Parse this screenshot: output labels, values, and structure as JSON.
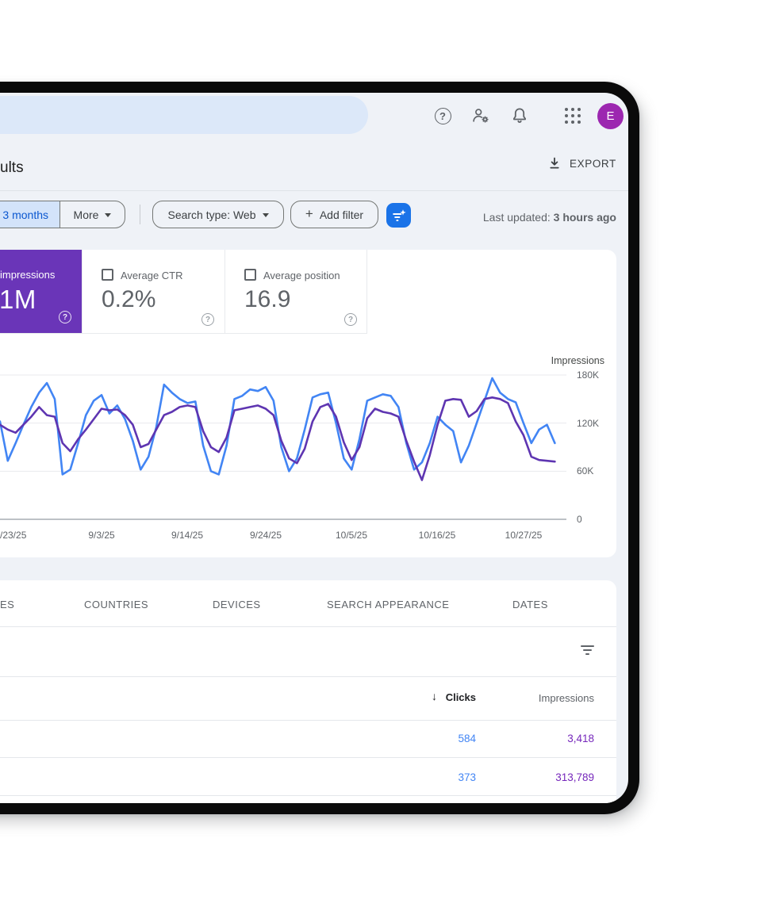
{
  "topbar": {
    "avatar_letter": "E"
  },
  "header": {
    "title": "ults",
    "export_label": "EXPORT"
  },
  "filters": {
    "date_chip": "3 months",
    "more_chip": "More",
    "search_type_chip": "Search type: Web",
    "add_filter_plus": "+",
    "add_filter_chip": "Add filter",
    "last_updated_label": "Last updated:",
    "last_updated_value": "3 hours ago"
  },
  "cards": {
    "impressions": {
      "label": "impressions",
      "value": "1M",
      "bg": "#6a35b8"
    },
    "ctr": {
      "label": "Average CTR",
      "value": "0.2%"
    },
    "position": {
      "label": "Average position",
      "value": "16.9"
    }
  },
  "chart_data": {
    "type": "line",
    "unit": "thousands",
    "axis_label": "Impressions",
    "ylim": [
      0,
      190
    ],
    "grid": true,
    "legend_position": "none",
    "y_ticks": [
      "180K",
      "120K",
      "60K",
      "0"
    ],
    "y_tick_values": [
      180,
      120,
      60,
      0
    ],
    "x_ticks": [
      "/23/25",
      "9/3/25",
      "9/14/25",
      "9/24/25",
      "10/5/25",
      "10/16/25",
      "10/27/25"
    ],
    "x_tick_positions": [
      0,
      128,
      236,
      335,
      443,
      551,
      660
    ],
    "series": [
      {
        "name": "Clicks",
        "color": "#4285f4",
        "values": [
          122,
          73,
          95,
          118,
          140,
          158,
          170,
          150,
          56,
          62,
          95,
          130,
          148,
          155,
          132,
          142,
          125,
          98,
          62,
          78,
          115,
          168,
          158,
          150,
          145,
          147,
          92,
          60,
          56,
          92,
          150,
          154,
          162,
          160,
          165,
          148,
          90,
          60,
          76,
          112,
          152,
          156,
          158,
          120,
          76,
          62,
          100,
          148,
          152,
          156,
          154,
          140,
          95,
          62,
          71,
          95,
          128,
          118,
          110,
          71,
          92,
          120,
          148,
          176,
          158,
          150,
          146,
          120,
          95,
          112,
          118,
          95
        ]
      },
      {
        "name": "Impressions",
        "color": "#5e35b1",
        "values": [
          118,
          112,
          108,
          118,
          128,
          140,
          130,
          128,
          95,
          85,
          100,
          112,
          125,
          138,
          136,
          137,
          130,
          118,
          90,
          94,
          112,
          130,
          134,
          140,
          142,
          140,
          110,
          90,
          84,
          102,
          136,
          138,
          140,
          142,
          138,
          130,
          98,
          76,
          70,
          88,
          122,
          140,
          144,
          128,
          96,
          74,
          90,
          126,
          138,
          134,
          132,
          128,
          98,
          72,
          49,
          80,
          118,
          148,
          150,
          149,
          128,
          135,
          150,
          152,
          150,
          145,
          122,
          105,
          78,
          74,
          73,
          72
        ]
      }
    ]
  },
  "table": {
    "tabs": [
      "ES",
      "COUNTRIES",
      "DEVICES",
      "SEARCH APPEARANCE",
      "DATES"
    ],
    "columns": {
      "clicks": "Clicks",
      "impressions": "Impressions"
    },
    "sort_arrow": "↓",
    "rows": [
      {
        "clicks": "584",
        "impressions": "3,418"
      },
      {
        "clicks": "373",
        "impressions": "313,789"
      }
    ],
    "clicks_color": "#4285f4",
    "impressions_color": "#7627bb"
  }
}
